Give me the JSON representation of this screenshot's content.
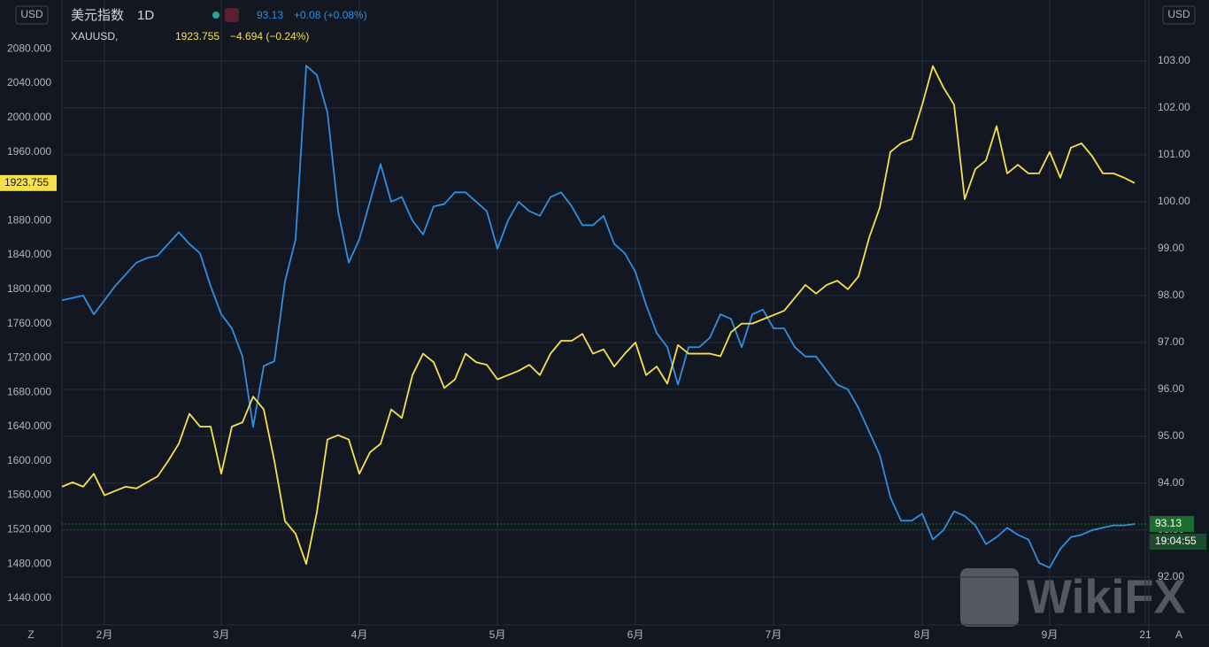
{
  "chart_data": {
    "type": "line",
    "interval": "1D",
    "left_unit": "USD",
    "right_unit": "USD",
    "countdown": "19:04:55",
    "buttons": [
      "Z",
      "A"
    ],
    "watermark": "WikiFX",
    "categories": [
      null,
      null,
      null,
      null,
      "2月",
      null,
      null,
      null,
      null,
      null,
      null,
      null,
      null,
      null,
      null,
      "3月",
      null,
      null,
      null,
      null,
      null,
      null,
      null,
      null,
      null,
      null,
      null,
      null,
      "4月",
      null,
      null,
      null,
      null,
      null,
      null,
      null,
      null,
      null,
      null,
      null,
      null,
      "5月",
      null,
      null,
      null,
      null,
      null,
      null,
      null,
      null,
      null,
      null,
      null,
      null,
      "6月",
      null,
      null,
      null,
      null,
      null,
      null,
      null,
      null,
      null,
      null,
      null,
      null,
      "7月",
      null,
      null,
      null,
      null,
      null,
      null,
      null,
      null,
      null,
      null,
      null,
      null,
      null,
      "8月",
      null,
      null,
      null,
      null,
      null,
      null,
      null,
      null,
      null,
      null,
      null,
      "9月",
      null,
      null,
      null,
      null,
      null,
      null,
      null,
      null,
      "21"
    ],
    "series": [
      {
        "name": "美元指数",
        "color": "#2f8fe0",
        "axis": "y2",
        "last": "93.13",
        "change": "+0.08 (+0.08%)",
        "values": [
          97.9,
          97.95,
          98.0,
          97.6,
          97.9,
          98.2,
          98.45,
          98.7,
          98.8,
          98.85,
          99.1,
          99.35,
          99.1,
          98.9,
          98.2,
          97.6,
          97.3,
          96.7,
          95.2,
          96.5,
          96.6,
          98.3,
          99.2,
          102.9,
          102.7,
          101.9,
          99.8,
          98.7,
          99.2,
          100.0,
          100.8,
          100.0,
          100.1,
          99.6,
          99.3,
          99.9,
          99.95,
          100.2,
          100.2,
          100.0,
          99.8,
          99.0,
          99.6,
          100.0,
          99.8,
          99.7,
          100.1,
          100.2,
          99.9,
          99.5,
          99.5,
          99.7,
          99.1,
          98.9,
          98.5,
          97.8,
          97.2,
          96.9,
          96.1,
          96.9,
          96.9,
          97.1,
          97.6,
          97.5,
          96.9,
          97.6,
          97.7,
          97.3,
          97.3,
          96.9,
          96.7,
          96.7,
          96.4,
          96.1,
          96.0,
          95.6,
          95.1,
          94.6,
          93.7,
          93.2,
          93.2,
          93.35,
          92.8,
          93.0,
          93.4,
          93.3,
          93.1,
          92.7,
          92.85,
          93.05,
          92.9,
          92.8,
          92.3,
          92.2,
          92.6,
          92.85,
          92.9,
          93.0,
          93.05,
          93.1,
          93.1,
          93.13,
          null
        ]
      },
      {
        "name": "XAUUSD,",
        "color": "#f7e14b",
        "axis": "y",
        "last": "1923.755",
        "change": "−4.694 (−0.24%)",
        "values": [
          1570,
          1575,
          1570,
          1585,
          1560,
          1565,
          1570,
          1568,
          1575,
          1582,
          1600,
          1620,
          1655,
          1640,
          1640,
          1585,
          1640,
          1645,
          1675,
          1660,
          1600,
          1530,
          1515,
          1480,
          1540,
          1625,
          1630,
          1625,
          1585,
          1610,
          1620,
          1660,
          1650,
          1700,
          1725,
          1715,
          1685,
          1695,
          1725,
          1715,
          1712,
          1695,
          1700,
          1705,
          1712,
          1700,
          1725,
          1740,
          1740,
          1748,
          1725,
          1730,
          1710,
          1725,
          1738,
          1700,
          1710,
          1690,
          1735,
          1725,
          1725,
          1725,
          1722,
          1750,
          1760,
          1760,
          1765,
          1770,
          1775,
          1790,
          1805,
          1795,
          1805,
          1810,
          1800,
          1815,
          1860,
          1895,
          1960,
          1970,
          1975,
          2015,
          2060,
          2035,
          2015,
          1905,
          1940,
          1950,
          1990,
          1935,
          1945,
          1935,
          1935,
          1960,
          1930,
          1965,
          1970,
          1955,
          1935,
          1935,
          1930,
          1923.755,
          null
        ]
      }
    ],
    "ylim": [
      1409,
      2137
    ],
    "yticks": [
      {
        "value": 1440,
        "label": "1440.000"
      },
      {
        "value": 1480,
        "label": "1480.000"
      },
      {
        "value": 1520,
        "label": "1520.000"
      },
      {
        "value": 1560,
        "label": "1560.000"
      },
      {
        "value": 1600,
        "label": "1600.000"
      },
      {
        "value": 1640,
        "label": "1640.000"
      },
      {
        "value": 1680,
        "label": "1680.000"
      },
      {
        "value": 1720,
        "label": "1720.000"
      },
      {
        "value": 1760,
        "label": "1760.000"
      },
      {
        "value": 1800,
        "label": "1800.000"
      },
      {
        "value": 1840,
        "label": "1840.000"
      },
      {
        "value": 1880,
        "label": "1880.000"
      },
      {
        "value": 1920,
        "label": "1920.000"
      },
      {
        "value": 1960,
        "label": "1960.000"
      },
      {
        "value": 2000,
        "label": "2000.000"
      },
      {
        "value": 2040,
        "label": "2040.000"
      },
      {
        "value": 2080,
        "label": "2080.000"
      }
    ],
    "y2lim": [
      90.98,
      104.3
    ],
    "y2ticks": [
      {
        "value": 92,
        "label": "92.00"
      },
      {
        "value": 93,
        "label": "93.00"
      },
      {
        "value": 94,
        "label": "94.00"
      },
      {
        "value": 95,
        "label": "95.00"
      },
      {
        "value": 96,
        "label": "96.00"
      },
      {
        "value": 97,
        "label": "97.00"
      },
      {
        "value": 98,
        "label": "98.00"
      },
      {
        "value": 99,
        "label": "99.00"
      },
      {
        "value": 100,
        "label": "100.00"
      },
      {
        "value": 101,
        "label": "101.00"
      },
      {
        "value": 102,
        "label": "102.00"
      },
      {
        "value": 103,
        "label": "103.00"
      }
    ],
    "grid": true
  }
}
